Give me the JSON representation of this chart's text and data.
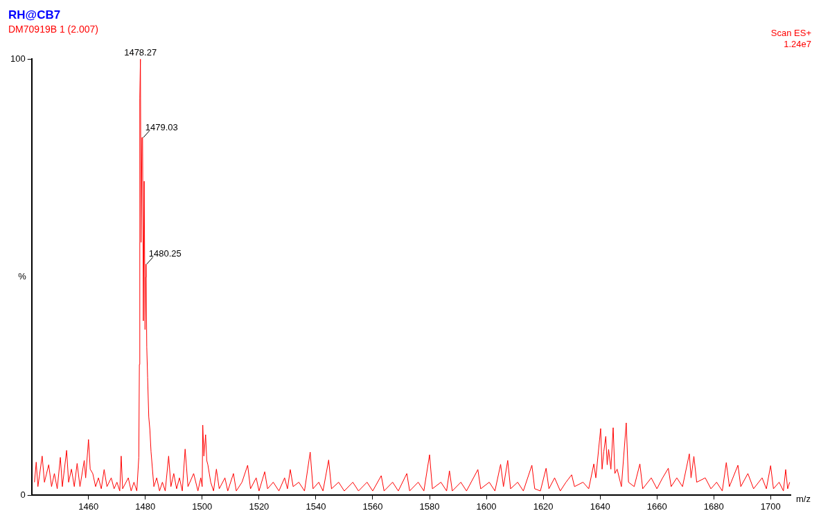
{
  "chart_data": {
    "type": "line",
    "title": "RH@CB7",
    "subtitle": "DM70919B 1 (2.007)",
    "xlabel": "m/z",
    "ylabel": "%",
    "x": [
      1441.0,
      1441.6,
      1442.2,
      1443.7,
      1444.5,
      1446,
      1447,
      1448,
      1449,
      1450.1,
      1450.8,
      1452.3,
      1453,
      1454,
      1455,
      1456,
      1457,
      1458.5,
      1459,
      1460,
      1460.6,
      1461.5,
      1462.5,
      1463.5,
      1464.5,
      1465.5,
      1466.5,
      1468,
      1469,
      1470,
      1471,
      1471.5,
      1472,
      1474,
      1475,
      1476,
      1477,
      1477.7,
      1477.9,
      1478.05,
      1478.27,
      1478.5,
      1478.8,
      1479.03,
      1479.3,
      1479.6,
      1479.9,
      1480.1,
      1480.25,
      1480.5,
      1480.8,
      1481.2,
      1481.6,
      1482,
      1482.5,
      1483,
      1484,
      1485,
      1486,
      1487,
      1488.2,
      1489,
      1490,
      1491,
      1492,
      1493,
      1494,
      1495,
      1497,
      1498.5,
      1499.5,
      1500,
      1500.2,
      1500.6,
      1501.2,
      1501.6,
      1502,
      1502.5,
      1503,
      1504,
      1505,
      1506,
      1508,
      1509,
      1511,
      1512,
      1514,
      1516,
      1517,
      1519,
      1520,
      1522,
      1523,
      1525,
      1527,
      1529,
      1530,
      1531,
      1532,
      1534,
      1536,
      1538,
      1539,
      1541,
      1542.5,
      1544.5,
      1545.5,
      1548,
      1550,
      1553,
      1555,
      1558,
      1560,
      1563,
      1564,
      1567,
      1569,
      1572,
      1573,
      1576,
      1578,
      1580,
      1581,
      1584,
      1586,
      1587,
      1588,
      1591,
      1593,
      1597,
      1598,
      1601,
      1603,
      1605,
      1606,
      1607.5,
      1608.5,
      1611,
      1613,
      1616,
      1617,
      1619,
      1621,
      1622,
      1624,
      1626,
      1628,
      1630,
      1631,
      1634,
      1636,
      1637.8,
      1638.5,
      1640.2,
      1640.7,
      1641.3,
      1642,
      1642.5,
      1643,
      1643.8,
      1644.6,
      1645.2,
      1646,
      1647.5,
      1649.2,
      1650,
      1652,
      1654,
      1655,
      1658,
      1660,
      1662,
      1664,
      1665,
      1667,
      1669,
      1671.4,
      1672,
      1673,
      1674,
      1677,
      1679,
      1681,
      1683,
      1684.4,
      1685.5,
      1688.5,
      1689.5,
      1692,
      1694,
      1697,
      1698.5,
      1700,
      1701,
      1703,
      1704.5,
      1705.3,
      1706,
      1706.7
    ],
    "series": [
      {
        "color": "#ff0000",
        "values": [
          3,
          7.6,
          2,
          9,
          3,
          7,
          2,
          5,
          1.5,
          8.7,
          2,
          10.3,
          3,
          6,
          2,
          7.3,
          2,
          8,
          4,
          12.8,
          6,
          5,
          2,
          4,
          1.5,
          5.9,
          2,
          4,
          1.5,
          3,
          1,
          9,
          1.5,
          4,
          1,
          3,
          1,
          8.7,
          30,
          91,
          100,
          58,
          82,
          82,
          40,
          72,
          38,
          50,
          53,
          34,
          27,
          18,
          15,
          10,
          6,
          2,
          4,
          1,
          3,
          1,
          9,
          2,
          5,
          1.5,
          4,
          1,
          10.6,
          2,
          5,
          1,
          4,
          2,
          16.1,
          9,
          13.9,
          8,
          7,
          5,
          3,
          1,
          6,
          1.5,
          4,
          1,
          5,
          1,
          3,
          6.9,
          1.5,
          4,
          1,
          5.4,
          1.5,
          3,
          1,
          4,
          1.5,
          5.9,
          2,
          3,
          1,
          9.9,
          1.5,
          3,
          1,
          8.1,
          1.5,
          3,
          1,
          3,
          1,
          3,
          1,
          4.5,
          1,
          3,
          1,
          5,
          1,
          3,
          1,
          9.3,
          1.5,
          3,
          1,
          5.6,
          1,
          3,
          1,
          5.9,
          1.5,
          3,
          1,
          7.1,
          2,
          8,
          1.5,
          3,
          1,
          6.9,
          1.5,
          1,
          6.2,
          1.5,
          4,
          1,
          3,
          4.7,
          2,
          3,
          1.5,
          7.2,
          4,
          15.3,
          6,
          10,
          13.5,
          7,
          10.5,
          6,
          15.5,
          5,
          6,
          2,
          16.6,
          3,
          2,
          7.2,
          1.5,
          4,
          1.5,
          4,
          6.2,
          2,
          4,
          2,
          9.5,
          4,
          8.9,
          3,
          4,
          1.5,
          3,
          1,
          7.5,
          2,
          6.9,
          2,
          5,
          1.5,
          4,
          1.5,
          6.8,
          1.5,
          3,
          1,
          5.9,
          1.5,
          3
        ]
      }
    ],
    "xlim": [
      1440,
      1707
    ],
    "xticks": [
      1460,
      1480,
      1500,
      1520,
      1540,
      1560,
      1580,
      1600,
      1620,
      1640,
      1660,
      1680,
      1700
    ],
    "ylim": [
      0,
      100
    ],
    "yticks": [
      0,
      100
    ],
    "annotations": [
      {
        "text": "1478.27",
        "x": 1478.27,
        "y": 100
      },
      {
        "text": "1479.03",
        "x": 1479.03,
        "y": 82
      },
      {
        "text": "1480.25",
        "x": 1480.25,
        "y": 53
      },
      "Scan ES+",
      "1.24e7"
    ],
    "grid": false,
    "legend": false,
    "marker": "none",
    "line_style": "solid"
  }
}
